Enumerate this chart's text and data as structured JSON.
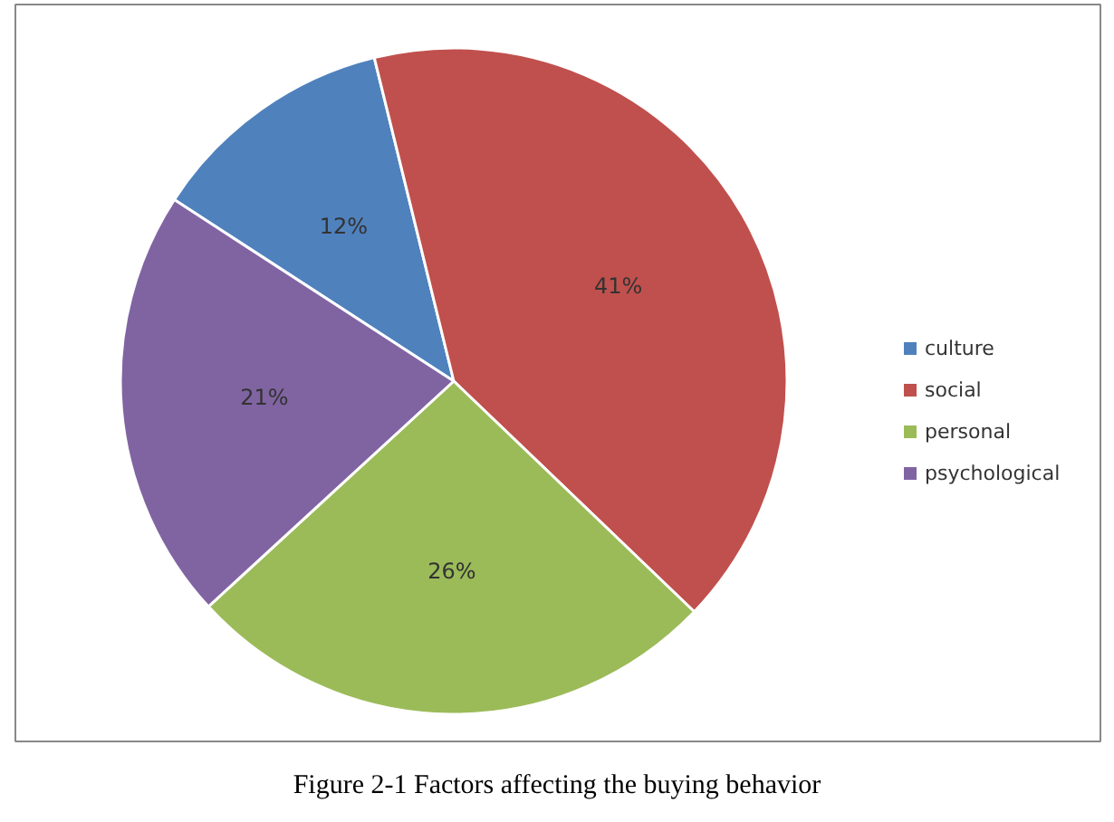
{
  "chart_data": {
    "type": "pie",
    "title": "Figure 2-1 Factors affecting the buying behavior",
    "categories": [
      "culture",
      "social",
      "personal",
      "psychological"
    ],
    "values": [
      12,
      41,
      26,
      21
    ],
    "colors": [
      "#4f81bd",
      "#c0504d",
      "#9bbb59",
      "#8064a2"
    ],
    "value_labels": [
      "12%",
      "41%",
      "26%",
      "21%"
    ],
    "legend": "right"
  }
}
